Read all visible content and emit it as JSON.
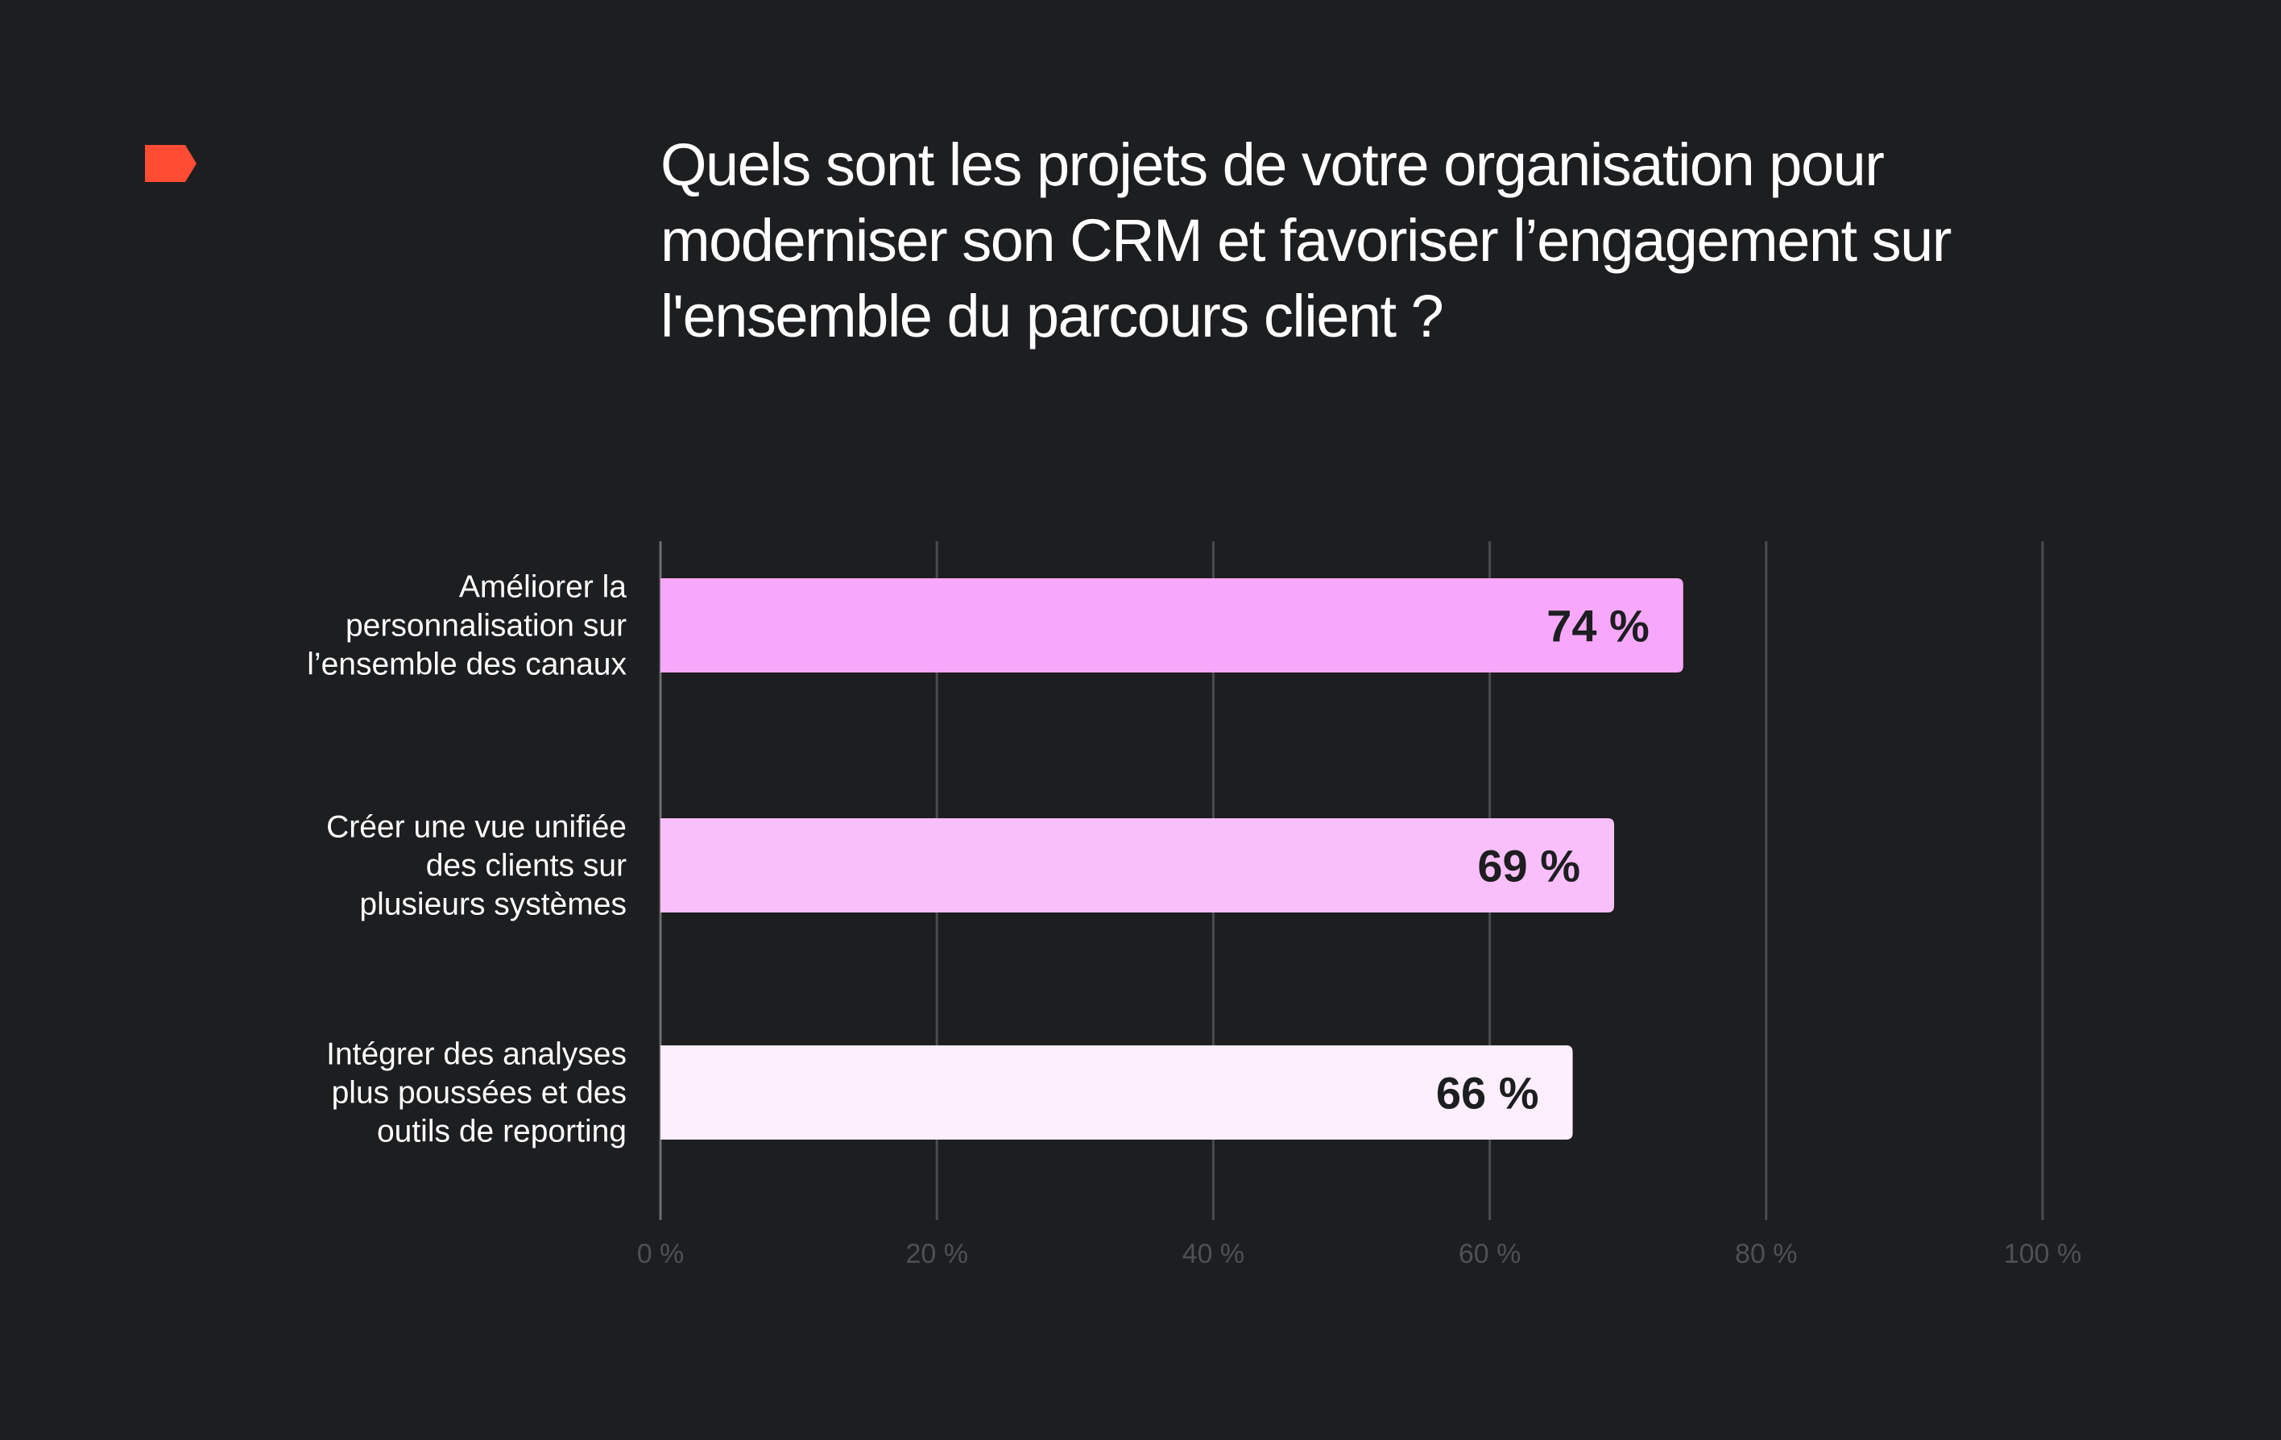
{
  "page": {
    "background": "#1d1e20",
    "logo_icon": "red-flag-logo",
    "logo_color": "#ff4c33"
  },
  "chart_data": {
    "type": "bar",
    "orientation": "horizontal",
    "title": "Quels sont les projets de votre organisation pour moderniser son CRM et favoriser l’engagement sur l'ensemble du parcours client ?",
    "categories": [
      [
        "Améliorer la",
        "personnalisation sur",
        "l’ensemble des canaux"
      ],
      [
        "Créer une vue unifiée",
        "des clients sur",
        "plusieurs systèmes"
      ],
      [
        "Intégrer des analyses",
        "plus poussées et des",
        "outils de reporting"
      ]
    ],
    "values": [
      74,
      69,
      66
    ],
    "value_labels": [
      "74 %",
      "69 %",
      "66 %"
    ],
    "bar_colors": [
      "#f7a8fb",
      "#f9bffb",
      "#fdeffd"
    ],
    "xlim": [
      0,
      100
    ],
    "ticks": [
      0,
      20,
      40,
      60,
      80,
      100
    ],
    "tick_labels": [
      "0 %",
      "20 %",
      "40 %",
      "60 %",
      "80 %",
      "100 %"
    ],
    "grid": true,
    "legend": "none",
    "grid_color": "#4a4b4f",
    "tick_label_color": "#4e5054"
  }
}
